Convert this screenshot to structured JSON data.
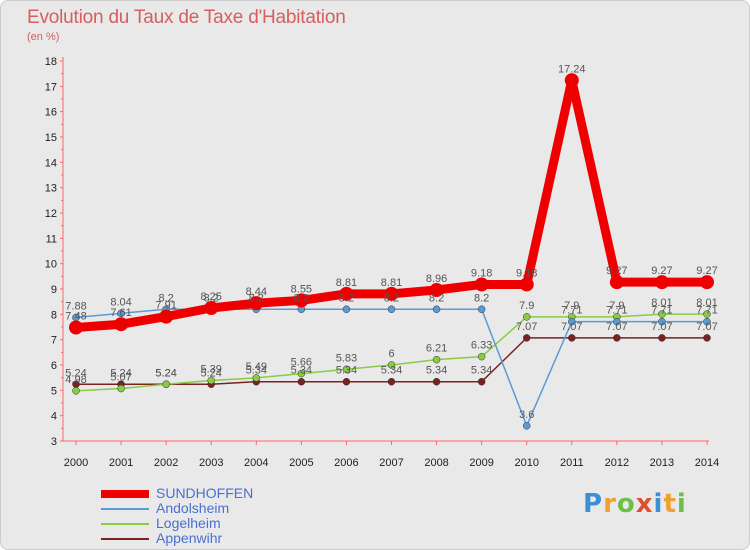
{
  "title": "Evolution du Taux de Taxe d'Habitation",
  "subtitle": "(en %)",
  "logo_text": "Proxiti",
  "chart_data": {
    "type": "line",
    "x": [
      "2000",
      "2001",
      "2002",
      "2003",
      "2004",
      "2005",
      "2006",
      "2007",
      "2008",
      "2009",
      "2010",
      "2011",
      "2012",
      "2013",
      "2014"
    ],
    "ylim": [
      3,
      18
    ],
    "yticks": [
      "3",
      "4",
      "5",
      "6",
      "7",
      "8",
      "9",
      "10",
      "11",
      "12",
      "13",
      "14",
      "15",
      "16",
      "17",
      "18"
    ],
    "grid": false,
    "legend_position": "bottom-left",
    "series": [
      {
        "name": "SUNDHOFFEN",
        "color": "#ee0000",
        "values": [
          7.48,
          7.61,
          7.91,
          8.25,
          8.44,
          8.55,
          8.81,
          8.81,
          8.96,
          9.18,
          9.18,
          17.24,
          9.27,
          9.27,
          9.27
        ],
        "labels": [
          "7.48",
          "7.61",
          "7.91",
          "8.25",
          "8.44",
          "8.55",
          "8.81",
          "8.81",
          "8.96",
          "9.18",
          "9.18",
          "17.24",
          "9.27",
          "9.27",
          "9.27"
        ]
      },
      {
        "name": "Andolsheim",
        "color": "#5b9bd5",
        "values": [
          7.88,
          8.04,
          8.2,
          8.2,
          8.2,
          8.2,
          8.2,
          8.2,
          8.2,
          8.2,
          3.6,
          7.71,
          7.71,
          7.71,
          7.71
        ],
        "labels": [
          "7.88",
          "8.04",
          "8.2",
          "8.2",
          "8.2",
          "8.2",
          "8.2",
          "8.2",
          "8.2",
          "8.2",
          "3.6",
          "7.71",
          "7.71",
          "7.71",
          "7.71"
        ]
      },
      {
        "name": "Logelheim",
        "color": "#88cc44",
        "values": [
          4.98,
          5.07,
          5.24,
          5.39,
          5.49,
          5.66,
          5.83,
          6,
          6.21,
          6.33,
          7.9,
          7.9,
          7.9,
          8.01,
          8.01
        ],
        "labels": [
          "4.98",
          "5.07",
          "5.24",
          "5.39",
          "5.49",
          "5.66",
          "5.83",
          "6",
          "6.21",
          "6.33",
          "7.9",
          "7.9",
          "7.9",
          "8.01",
          "8.01"
        ]
      },
      {
        "name": "Appenwihr",
        "color": "#7a2222",
        "values": [
          5.24,
          5.24,
          5.24,
          5.24,
          5.34,
          5.34,
          5.34,
          5.34,
          5.34,
          5.34,
          7.07,
          7.07,
          7.07,
          7.07,
          7.07
        ],
        "labels": [
          "5.24",
          "5.24",
          "5.24",
          "5.24",
          "5.34",
          "5.34",
          "5.34",
          "5.34",
          "5.34",
          "5.34",
          "7.07",
          "7.07",
          "7.07",
          "7.07",
          "7.07"
        ]
      }
    ]
  }
}
